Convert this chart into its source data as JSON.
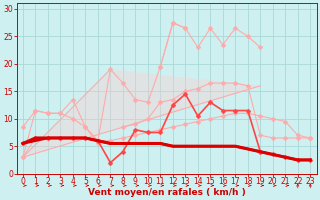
{
  "background_color": "#cff0f0",
  "grid_color": "#aad8d8",
  "xlabel": "Vent moyen/en rafales ( km/h )",
  "x": [
    0,
    1,
    2,
    3,
    4,
    5,
    6,
    7,
    8,
    9,
    10,
    11,
    12,
    13,
    14,
    15,
    16,
    17,
    18,
    19,
    20,
    21,
    22,
    23
  ],
  "series": [
    {
      "name": "rafales_high",
      "color": "#ffaaaa",
      "values": [
        null,
        null,
        null,
        null,
        null,
        null,
        null,
        null,
        null,
        null,
        null,
        19.5,
        27.5,
        26.5,
        null,
        null,
        null,
        null,
        null,
        null,
        null,
        null,
        null,
        null
      ],
      "marker": "D",
      "markersize": 2.5,
      "linewidth": 0.8
    },
    {
      "name": "triangle_upper",
      "color": "#ffaaaa",
      "values": [
        3.0,
        null,
        null,
        null,
        null,
        null,
        null,
        19.0,
        null,
        null,
        null,
        null,
        null,
        null,
        null,
        null,
        null,
        null,
        null,
        null,
        null,
        null,
        null,
        null
      ],
      "marker": null,
      "markersize": 0,
      "linewidth": 0.8,
      "special": "triangle_upper"
    },
    {
      "name": "line_pink_upper",
      "color": "#ffaaaa",
      "values": [
        3.0,
        11.5,
        11.0,
        11.0,
        13.5,
        8.5,
        6.0,
        19.0,
        16.5,
        13.5,
        13.0,
        19.5,
        27.5,
        26.5,
        23.0,
        26.5,
        23.5,
        26.5,
        25.0,
        23.0,
        null,
        null,
        null,
        null
      ],
      "marker": "D",
      "markersize": 2.5,
      "linewidth": 0.8
    },
    {
      "name": "line_pink_lower",
      "color": "#ffaaaa",
      "values": [
        8.5,
        11.5,
        11.0,
        11.0,
        10.0,
        8.5,
        5.5,
        null,
        8.5,
        9.0,
        10.0,
        13.0,
        13.5,
        15.0,
        15.5,
        16.5,
        16.5,
        16.5,
        16.0,
        7.0,
        6.5,
        6.5,
        6.5,
        6.5
      ],
      "marker": "D",
      "markersize": 2.5,
      "linewidth": 0.8
    },
    {
      "name": "line_pink_mid",
      "color": "#ffaaaa",
      "values": [
        3.0,
        6.5,
        6.5,
        6.5,
        6.5,
        6.5,
        6.0,
        6.0,
        6.5,
        7.0,
        7.5,
        8.0,
        8.5,
        9.0,
        9.5,
        10.0,
        10.5,
        11.0,
        11.0,
        10.5,
        10.0,
        9.5,
        7.0,
        6.5
      ],
      "marker": "D",
      "markersize": 2.5,
      "linewidth": 0.8
    },
    {
      "name": "line_red_mid",
      "color": "#ff4444",
      "values": [
        5.5,
        6.5,
        6.5,
        6.5,
        6.5,
        6.5,
        6.0,
        2.0,
        4.0,
        8.0,
        7.5,
        7.5,
        12.5,
        14.5,
        10.5,
        13.0,
        11.5,
        11.5,
        11.5,
        4.0,
        3.5,
        3.0,
        2.5,
        2.5
      ],
      "marker": "D",
      "markersize": 2.5,
      "linewidth": 1.2
    },
    {
      "name": "line_dark_red1",
      "color": "#cc0000",
      "values": [
        5.5,
        6.0,
        6.5,
        6.5,
        6.5,
        6.5,
        6.0,
        5.5,
        5.5,
        5.5,
        5.5,
        5.5,
        5.0,
        5.0,
        5.0,
        5.0,
        5.0,
        5.0,
        4.5,
        4.0,
        3.5,
        3.0,
        2.5,
        2.5
      ],
      "marker": null,
      "markersize": 0,
      "linewidth": 1.8
    },
    {
      "name": "line_dark_red2",
      "color": "#dd0000",
      "values": [
        5.5,
        6.5,
        6.5,
        6.5,
        6.5,
        6.5,
        6.0,
        5.5,
        5.5,
        5.5,
        5.5,
        5.5,
        5.0,
        5.0,
        5.0,
        5.0,
        5.0,
        5.0,
        4.5,
        4.0,
        3.5,
        3.0,
        2.5,
        2.5
      ],
      "marker": null,
      "markersize": 0,
      "linewidth": 2.2
    }
  ],
  "ylim": [
    0,
    31
  ],
  "yticks": [
    0,
    5,
    10,
    15,
    20,
    25,
    30
  ],
  "xticks": [
    0,
    1,
    2,
    3,
    4,
    5,
    6,
    7,
    8,
    9,
    10,
    11,
    12,
    13,
    14,
    15,
    16,
    17,
    18,
    19,
    20,
    21,
    22,
    23
  ],
  "xlabel_fontsize": 6.5,
  "tick_fontsize": 5.5
}
